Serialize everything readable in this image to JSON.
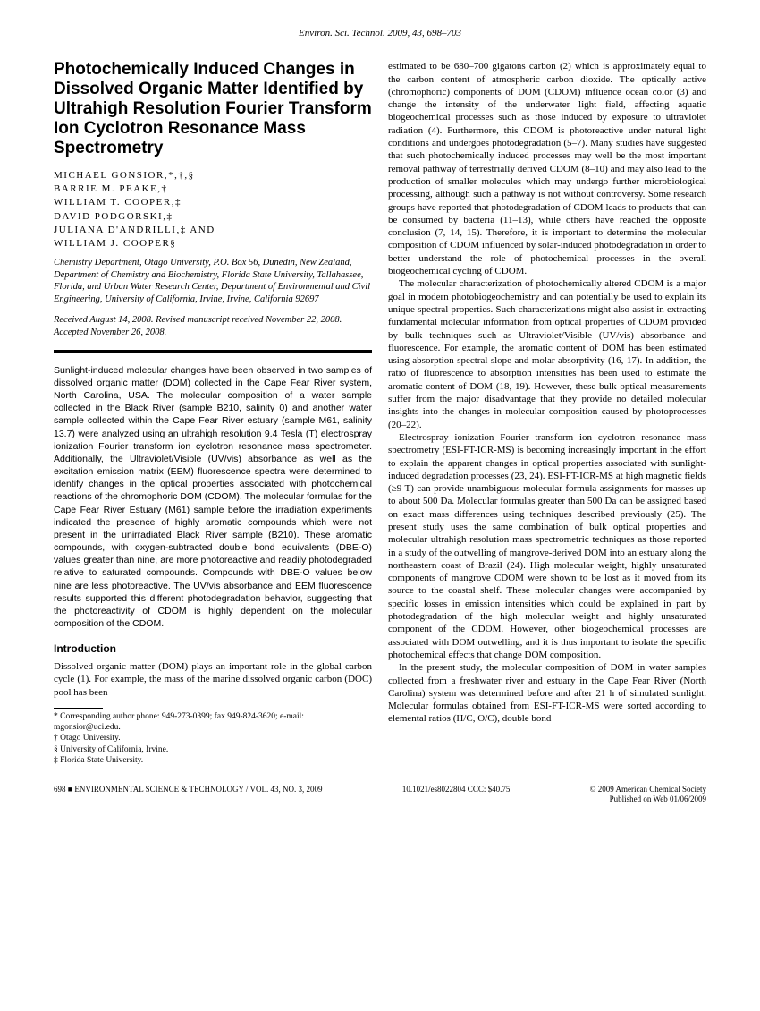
{
  "header": "Environ. Sci. Technol. 2009, 43, 698–703",
  "title": "Photochemically Induced Changes in Dissolved Organic Matter Identified by Ultrahigh Resolution Fourier Transform Ion Cyclotron Resonance Mass Spectrometry",
  "authors": "MICHAEL GONSIOR,*,†,§\nBARRIE M. PEAKE,†\nWILLIAM T. COOPER,‡\nDAVID PODGORSKI,‡\nJULIANA D'ANDRILLI,‡ AND\nWILLIAM J. COOPER§",
  "affiliations": "Chemistry Department, Otago University, P.O. Box 56, Dunedin, New Zealand, Department of Chemistry and Biochemistry, Florida State University, Tallahassee, Florida, and Urban Water Research Center, Department of Environmental and Civil Engineering, University of California, Irvine, Irvine, California 92697",
  "dates": "Received August 14, 2008. Revised manuscript received November 22, 2008. Accepted November 26, 2008.",
  "abstract": "Sunlight-induced molecular changes have been observed in two samples of dissolved organic matter (DOM) collected in the Cape Fear River system, North Carolina, USA. The molecular composition of a water sample collected in the Black River (sample B210, salinity 0) and another water sample collected within the Cape Fear River estuary (sample M61, salinity 13.7) were analyzed using an ultrahigh resolution 9.4 Tesla (T) electrospray ionization Fourier transform ion cyclotron resonance mass spectrometer. Additionally, the Ultraviolet/Visible (UV/vis) absorbance as well as the excitation emission matrix (EEM) fluorescence spectra were determined to identify changes in the optical properties associated with photochemical reactions of the chromophoric DOM (CDOM). The molecular formulas for the Cape Fear River Estuary (M61) sample before the irradiation experiments indicated the presence of highly aromatic compounds which were not present in the unirradiated Black River sample (B210). These aromatic compounds, with oxygen-subtracted double bond equivalents (DBE-O) values greater than nine, are more photoreactive and readily photodegraded relative to saturated compounds. Compounds with DBE-O values below nine are less photoreactive. The UV/vis absorbance and EEM fluorescence results supported this different photodegradation behavior, suggesting that the photoreactivity of CDOM is highly dependent on the molecular composition of the CDOM.",
  "intro_header": "Introduction",
  "intro_p1": "Dissolved organic matter (DOM) plays an important role in the global carbon cycle (1). For example, the mass of the marine dissolved organic carbon (DOC) pool has been",
  "footnotes": {
    "corr": "* Corresponding author phone: 949-273-0399; fax 949-824-3620; e-mail: mgonsior@uci.edu.",
    "f1": "† Otago University.",
    "f2": "§ University of California, Irvine.",
    "f3": "‡ Florida State University."
  },
  "col2": {
    "p1": "estimated to be 680–700 gigatons carbon (2) which is approximately equal to the carbon content of atmospheric carbon dioxide. The optically active (chromophoric) components of DOM (CDOM) influence ocean color (3) and change the intensity of the underwater light field, affecting aquatic biogeochemical processes such as those induced by exposure to ultraviolet radiation (4). Furthermore, this CDOM is photoreactive under natural light conditions and undergoes photodegradation (5–7). Many studies have suggested that such photochemically induced processes may well be the most important removal pathway of terrestrially derived CDOM (8–10) and may also lead to the production of smaller molecules which may undergo further microbiological processing, although such a pathway is not without controversy. Some research groups have reported that photodegradation of CDOM leads to products that can be consumed by bacteria (11–13), while others have reached the opposite conclusion (7, 14, 15). Therefore, it is important to determine the molecular composition of CDOM influenced by solar-induced photodegradation in order to better understand the role of photochemical processes in the overall biogeochemical cycling of CDOM.",
    "p2": "The molecular characterization of photochemically altered CDOM is a major goal in modern photobiogeochemistry and can potentially be used to explain its unique spectral properties. Such characterizations might also assist in extracting fundamental molecular information from optical properties of CDOM provided by bulk techniques such as Ultraviolet/Visible (UV/vis) absorbance and fluorescence. For example, the aromatic content of DOM has been estimated using absorption spectral slope and molar absorptivity (16, 17). In addition, the ratio of fluorescence to absorption intensities has been used to estimate the aromatic content of DOM (18, 19). However, these bulk optical measurements suffer from the major disadvantage that they provide no detailed molecular insights into the changes in molecular composition caused by photoprocesses (20–22).",
    "p3": "Electrospray ionization Fourier transform ion cyclotron resonance mass spectrometry (ESI-FT-ICR-MS) is becoming increasingly important in the effort to explain the apparent changes in optical properties associated with sunlight-induced degradation processes (23, 24). ESI-FT-ICR-MS at high magnetic fields (≥9 T) can provide unambiguous molecular formula assignments for masses up to about 500 Da. Molecular formulas greater than 500 Da can be assigned based on exact mass differences using techniques described previously (25). The present study uses the same combination of bulk optical properties and molecular ultrahigh resolution mass spectrometric techniques as those reported in a study of the outwelling of mangrove-derived DOM into an estuary along the northeastern coast of Brazil (24). High molecular weight, highly unsaturated components of mangrove CDOM were shown to be lost as it moved from its source to the coastal shelf. These molecular changes were accompanied by specific losses in emission intensities which could be explained in part by photodegradation of the high molecular weight and highly unsaturated component of the CDOM. However, other biogeochemical processes are associated with DOM outwelling, and it is thus important to isolate the specific photochemical effects that change DOM composition.",
    "p4": "In the present study, the molecular composition of DOM in water samples collected from a freshwater river and estuary in the Cape Fear River (North Carolina) system was determined before and after 21 h of simulated sunlight. Molecular formulas obtained from ESI-FT-ICR-MS were sorted according to elemental ratios (H/C, O/C), double bond"
  },
  "footer": {
    "left": "698 ■ ENVIRONMENTAL SCIENCE & TECHNOLOGY / VOL. 43, NO. 3, 2009",
    "center": "10.1021/es8022804 CCC: $40.75",
    "right1": "© 2009 American Chemical Society",
    "right2": "Published on Web 01/06/2009"
  }
}
